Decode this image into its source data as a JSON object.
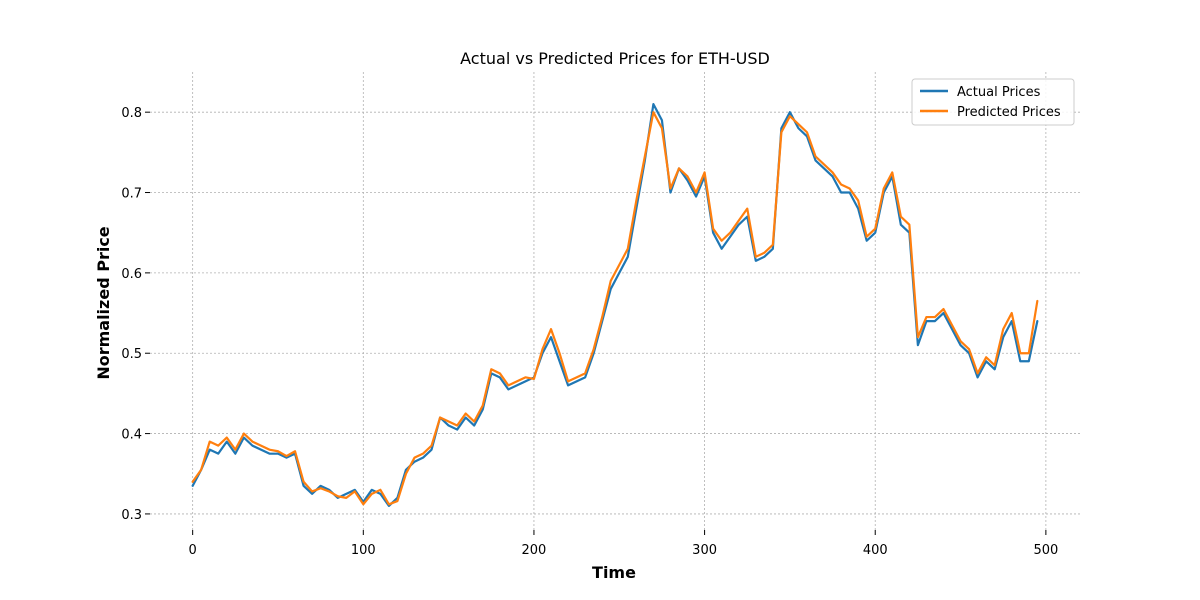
{
  "chart_data": {
    "type": "line",
    "title": "Actual vs Predicted Prices for ETH-USD",
    "xlabel": "Time",
    "ylabel": "Normalized Price",
    "xlim": [
      -25,
      520
    ],
    "ylim": [
      0.28,
      0.85
    ],
    "xticks": [
      0,
      100,
      200,
      300,
      400,
      500
    ],
    "yticks": [
      0.3,
      0.4,
      0.5,
      0.6,
      0.7,
      0.8
    ],
    "grid": true,
    "legend_position": "top-right",
    "x_keypoints": [
      0,
      5,
      10,
      15,
      20,
      25,
      30,
      35,
      40,
      45,
      50,
      55,
      60,
      65,
      70,
      75,
      80,
      85,
      90,
      95,
      100,
      105,
      110,
      115,
      120,
      125,
      130,
      135,
      140,
      145,
      150,
      155,
      160,
      165,
      170,
      175,
      180,
      185,
      190,
      195,
      200,
      205,
      210,
      215,
      220,
      225,
      230,
      235,
      240,
      245,
      250,
      255,
      260,
      265,
      270,
      275,
      280,
      285,
      290,
      295,
      300,
      305,
      310,
      315,
      320,
      325,
      330,
      335,
      340,
      345,
      350,
      355,
      360,
      365,
      370,
      375,
      380,
      385,
      390,
      395,
      400,
      405,
      410,
      415,
      420,
      425,
      430,
      435,
      440,
      445,
      450,
      455,
      460,
      465,
      470,
      475,
      480,
      485,
      490,
      495
    ],
    "series": [
      {
        "name": "Actual Prices",
        "color": "#1f77b4",
        "values": [
          0.335,
          0.355,
          0.38,
          0.375,
          0.39,
          0.375,
          0.395,
          0.385,
          0.38,
          0.375,
          0.375,
          0.37,
          0.375,
          0.335,
          0.325,
          0.335,
          0.33,
          0.32,
          0.325,
          0.33,
          0.315,
          0.33,
          0.325,
          0.31,
          0.32,
          0.355,
          0.365,
          0.37,
          0.38,
          0.42,
          0.41,
          0.405,
          0.42,
          0.41,
          0.43,
          0.475,
          0.47,
          0.455,
          0.46,
          0.465,
          0.47,
          0.5,
          0.52,
          0.49,
          0.46,
          0.465,
          0.47,
          0.5,
          0.54,
          0.58,
          0.6,
          0.62,
          0.68,
          0.74,
          0.81,
          0.79,
          0.7,
          0.73,
          0.715,
          0.695,
          0.72,
          0.65,
          0.63,
          0.645,
          0.66,
          0.67,
          0.615,
          0.62,
          0.63,
          0.78,
          0.8,
          0.78,
          0.77,
          0.74,
          0.73,
          0.72,
          0.7,
          0.7,
          0.68,
          0.64,
          0.65,
          0.7,
          0.72,
          0.66,
          0.65,
          0.51,
          0.54,
          0.54,
          0.55,
          0.53,
          0.51,
          0.5,
          0.47,
          0.49,
          0.48,
          0.52,
          0.54,
          0.49,
          0.49,
          0.54
        ],
        "markers": false
      },
      {
        "name": "Predicted Prices",
        "color": "#ff7f0e",
        "values": [
          0.34,
          0.355,
          0.39,
          0.385,
          0.395,
          0.38,
          0.4,
          0.39,
          0.385,
          0.38,
          0.378,
          0.372,
          0.378,
          0.34,
          0.328,
          0.332,
          0.328,
          0.322,
          0.32,
          0.328,
          0.312,
          0.325,
          0.33,
          0.312,
          0.316,
          0.35,
          0.37,
          0.375,
          0.385,
          0.42,
          0.415,
          0.41,
          0.425,
          0.415,
          0.435,
          0.48,
          0.475,
          0.46,
          0.465,
          0.47,
          0.468,
          0.505,
          0.53,
          0.5,
          0.465,
          0.47,
          0.475,
          0.505,
          0.545,
          0.59,
          0.61,
          0.63,
          0.69,
          0.745,
          0.8,
          0.78,
          0.705,
          0.73,
          0.72,
          0.7,
          0.725,
          0.655,
          0.64,
          0.65,
          0.665,
          0.68,
          0.62,
          0.625,
          0.635,
          0.775,
          0.795,
          0.785,
          0.775,
          0.745,
          0.735,
          0.725,
          0.71,
          0.705,
          0.69,
          0.645,
          0.655,
          0.705,
          0.725,
          0.67,
          0.66,
          0.52,
          0.545,
          0.545,
          0.555,
          0.535,
          0.515,
          0.505,
          0.475,
          0.495,
          0.485,
          0.53,
          0.55,
          0.5,
          0.5,
          0.565
        ],
        "markers": false
      }
    ]
  }
}
